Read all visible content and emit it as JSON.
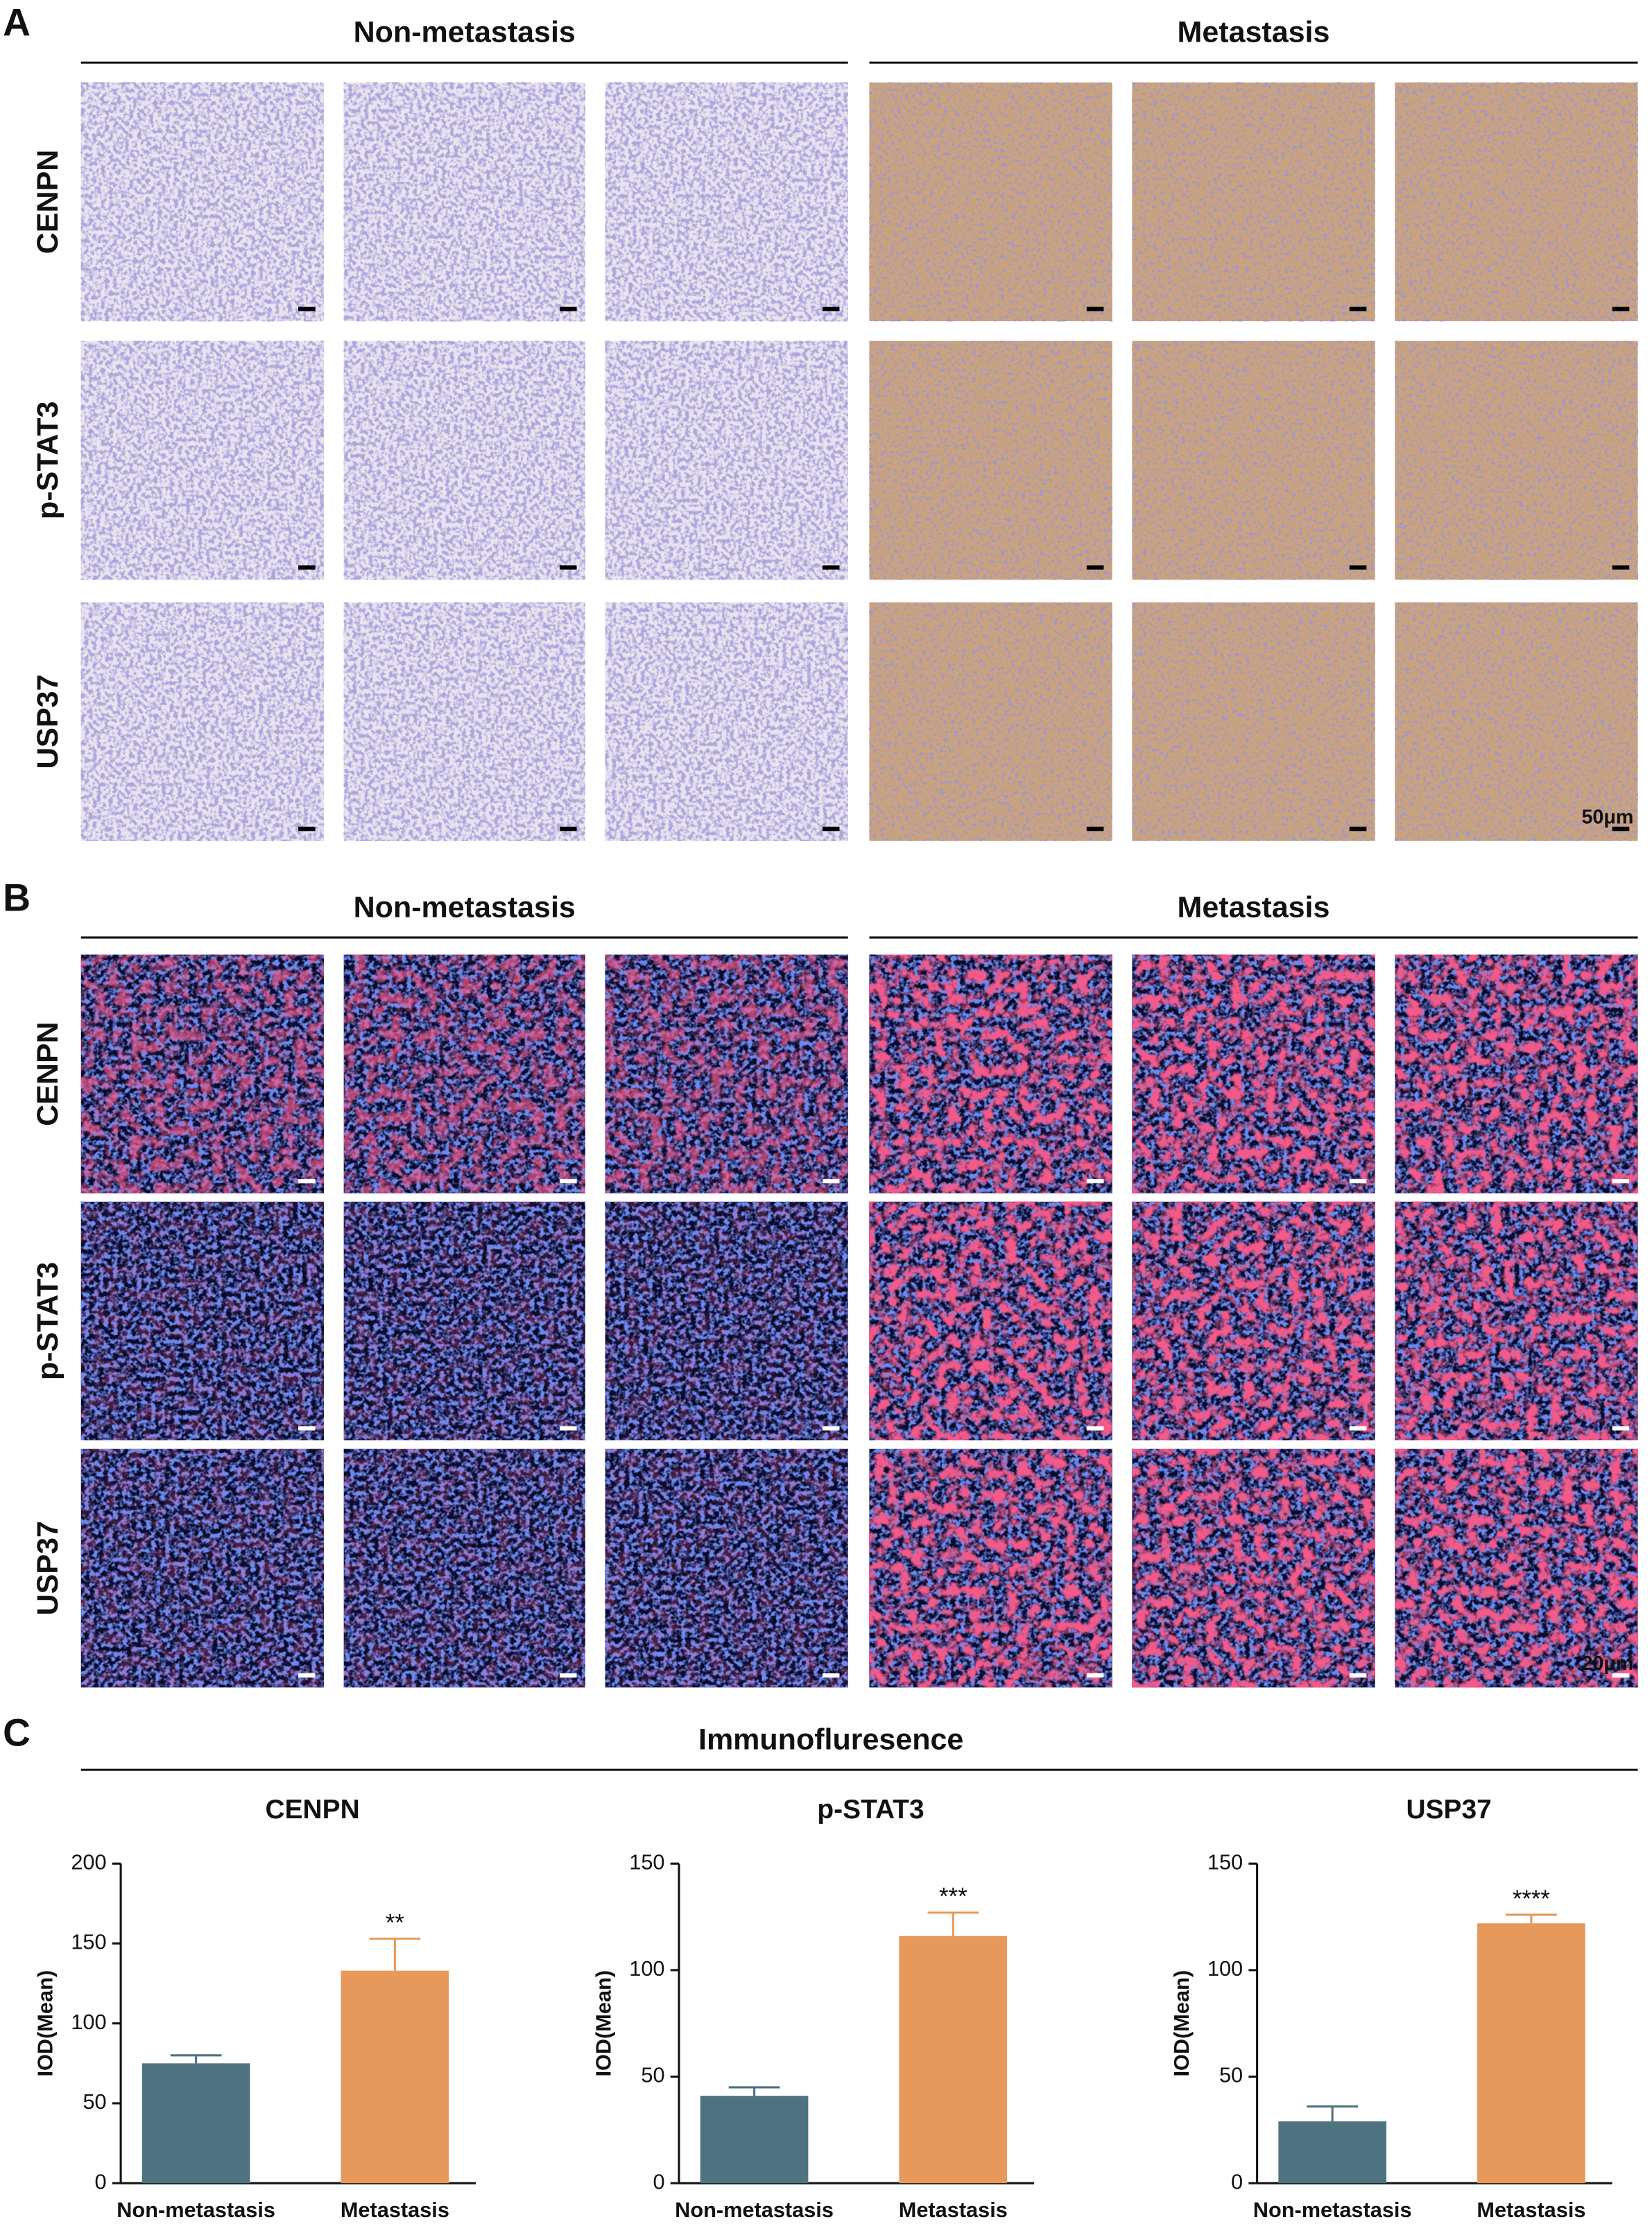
{
  "panel_A": {
    "letter": "A",
    "groups": [
      "Non-metastasis",
      "Metastasis"
    ],
    "rows": [
      "CENPN",
      "p-STAT3",
      "USP37"
    ],
    "scale_label": "50μm"
  },
  "panel_B": {
    "letter": "B",
    "groups": [
      "Non-metastasis",
      "Metastasis"
    ],
    "rows": [
      "CENPN",
      "p-STAT3",
      "USP37"
    ],
    "scale_label": "20μm"
  },
  "panel_C": {
    "letter": "C",
    "title": "Immunofluresence"
  },
  "chart_data": [
    {
      "type": "bar",
      "title": "CENPN",
      "y_label": "IOD(Mean)",
      "categories": [
        "Non-metastasis",
        "Metastasis"
      ],
      "values": [
        75,
        133
      ],
      "errors": [
        5,
        20
      ],
      "colors": [
        "#4e7280",
        "#e6995a"
      ],
      "significance": "**",
      "ylim": [
        0,
        200
      ],
      "yticks": [
        0,
        50,
        100,
        150,
        200
      ]
    },
    {
      "type": "bar",
      "title": "p-STAT3",
      "y_label": "IOD(Mean)",
      "categories": [
        "Non-metastasis",
        "Metastasis"
      ],
      "values": [
        41,
        116
      ],
      "errors": [
        4,
        11
      ],
      "colors": [
        "#4e7280",
        "#e6995a"
      ],
      "significance": "***",
      "ylim": [
        0,
        150
      ],
      "yticks": [
        0,
        50,
        100,
        150
      ]
    },
    {
      "type": "bar",
      "title": "USP37",
      "y_label": "IOD(Mean)",
      "categories": [
        "Non-metastasis",
        "Metastasis"
      ],
      "values": [
        29,
        122
      ],
      "errors": [
        7,
        4
      ],
      "colors": [
        "#4e7280",
        "#e6995a"
      ],
      "significance": "****",
      "ylim": [
        0,
        150
      ],
      "yticks": [
        0,
        50,
        100,
        150
      ]
    }
  ]
}
